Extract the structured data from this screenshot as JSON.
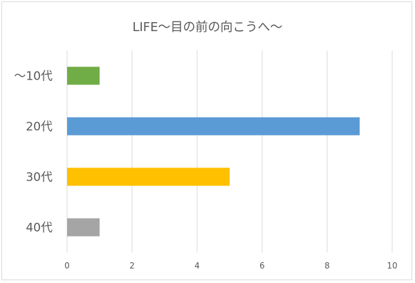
{
  "chart_data": {
    "type": "bar",
    "orientation": "horizontal",
    "title": "LIFE〜目の前の向こうへ〜",
    "categories": [
      "〜10代",
      "20代",
      "30代",
      "40代"
    ],
    "values": [
      1,
      9,
      5,
      1
    ],
    "colors": [
      "#70ad47",
      "#5b9bd5",
      "#ffc000",
      "#a5a5a5"
    ],
    "xlim": [
      0,
      10
    ],
    "xticks": [
      "0",
      "2",
      "4",
      "6",
      "8",
      "10"
    ],
    "grid": true,
    "legend": false
  }
}
